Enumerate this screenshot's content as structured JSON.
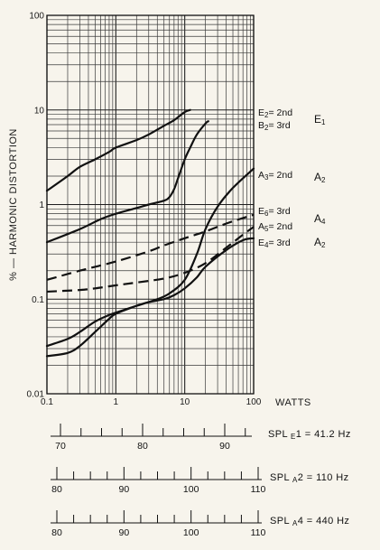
{
  "chart_data": {
    "type": "line",
    "xlabel": "WATTS",
    "ylabel": "% — HARMONIC DISTORTION",
    "xscale": "log",
    "yscale": "log",
    "xlim": [
      0.1,
      100
    ],
    "ylim": [
      0.01,
      100
    ],
    "x_ticks": [
      "0.1",
      "1",
      "10",
      "100"
    ],
    "y_ticks": [
      "0.01",
      "0.1",
      "1",
      "10",
      "100"
    ],
    "grid": true,
    "series": [
      {
        "name": "E2 = 2nd",
        "dash": false,
        "x": [
          0.1,
          0.2,
          0.3,
          0.5,
          0.8,
          1,
          2,
          3,
          5,
          7,
          10,
          12
        ],
        "y": [
          1.4,
          2.0,
          2.5,
          3.0,
          3.6,
          4.0,
          4.8,
          5.5,
          6.8,
          7.8,
          9.5,
          10
        ]
      },
      {
        "name": "B2 = 3rd",
        "dash": false,
        "x": [
          0.1,
          0.3,
          0.6,
          1,
          2,
          3,
          5,
          6,
          7,
          8,
          10,
          12,
          15,
          20,
          22
        ],
        "y": [
          0.4,
          0.55,
          0.7,
          0.8,
          0.92,
          1.0,
          1.1,
          1.2,
          1.45,
          1.9,
          3.0,
          4.0,
          5.5,
          7.2,
          7.6
        ]
      },
      {
        "name": "A3 = 2nd",
        "dash": false,
        "x": [
          0.1,
          0.2,
          0.3,
          0.5,
          0.8,
          1,
          2,
          4,
          6,
          10,
          15,
          20,
          30,
          50,
          100
        ],
        "y": [
          0.032,
          0.038,
          0.045,
          0.058,
          0.068,
          0.072,
          0.085,
          0.1,
          0.115,
          0.16,
          0.3,
          0.55,
          0.95,
          1.5,
          2.4
        ]
      },
      {
        "name": "E6 = 3rd",
        "dash": true,
        "x": [
          0.1,
          0.3,
          1,
          3,
          5,
          10,
          20,
          40,
          70,
          100
        ],
        "y": [
          0.16,
          0.2,
          0.25,
          0.32,
          0.37,
          0.44,
          0.52,
          0.63,
          0.72,
          0.78
        ]
      },
      {
        "name": "A5 = 2nd",
        "dash": true,
        "x": [
          0.1,
          0.3,
          0.5,
          1,
          2,
          5,
          10,
          20,
          40,
          70,
          100
        ],
        "y": [
          0.12,
          0.125,
          0.13,
          0.14,
          0.15,
          0.165,
          0.19,
          0.24,
          0.35,
          0.48,
          0.58
        ]
      },
      {
        "name": "E4 = 3rd",
        "dash": false,
        "x": [
          0.1,
          0.2,
          0.3,
          0.5,
          0.8,
          1,
          2,
          3,
          5,
          7,
          10,
          15,
          20,
          40,
          70,
          100
        ],
        "y": [
          0.025,
          0.027,
          0.032,
          0.045,
          0.062,
          0.07,
          0.085,
          0.093,
          0.1,
          0.11,
          0.13,
          0.17,
          0.22,
          0.33,
          0.42,
          0.44
        ]
      }
    ],
    "annotations": [
      {
        "lines": [
          [
            "E",
            "2",
            "= 2nd"
          ],
          [
            "B",
            "2",
            "= 3rd"
          ]
        ],
        "group": [
          "E",
          "1"
        ]
      },
      {
        "lines": [
          [
            "A",
            "3",
            "= 2nd"
          ]
        ],
        "group": [
          "A",
          "2"
        ]
      },
      {
        "lines": [
          [
            "E",
            "6",
            "= 3rd"
          ],
          [
            "A",
            "5",
            "= 2nd"
          ]
        ],
        "group": [
          "A",
          "4"
        ]
      },
      {
        "lines": [
          [
            "E",
            "4",
            "= 3rd"
          ]
        ],
        "group": [
          "A",
          "2"
        ]
      }
    ],
    "spl_scales": [
      {
        "label": [
          "SPL ",
          "E",
          "1",
          " = 41.2 Hz"
        ],
        "min": 70,
        "max": 95,
        "labels": [
          70,
          80,
          90
        ]
      },
      {
        "label": [
          "SPL ",
          "A",
          "2",
          " = 110 Hz"
        ],
        "min": 80,
        "max": 110,
        "labels": [
          80,
          90,
          100,
          110
        ]
      },
      {
        "label": [
          "SPL ",
          "A",
          "4",
          " = 440 Hz"
        ],
        "min": 80,
        "max": 110,
        "labels": [
          80,
          90,
          100,
          110
        ]
      }
    ]
  }
}
